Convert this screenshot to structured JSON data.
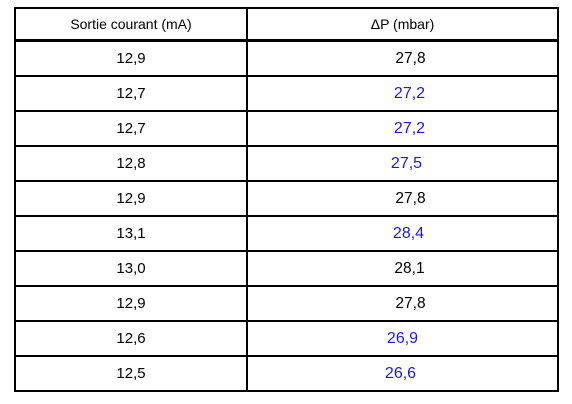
{
  "table": {
    "headers": [
      "Sortie courant (mA)",
      "ΔP (mbar)"
    ],
    "blue_color": "#1a1adf",
    "rows": [
      {
        "current": "12,9",
        "dp": "27,8",
        "blue": false
      },
      {
        "current": "12,7",
        "dp": "27,2",
        "blue": true
      },
      {
        "current": "12,7",
        "dp": "27,2",
        "blue": true
      },
      {
        "current": "12,8",
        "dp": "27,5",
        "blue": true
      },
      {
        "current": "12,9",
        "dp": "27,8",
        "blue": false
      },
      {
        "current": "13,1",
        "dp": "28,4",
        "blue": true
      },
      {
        "current": "13,0",
        "dp": "28,1",
        "blue": false
      },
      {
        "current": "12,9",
        "dp": "27,8",
        "blue": false
      },
      {
        "current": "12,6",
        "dp": "26,9",
        "blue": true
      },
      {
        "current": "12,5",
        "dp": "26,6",
        "blue": true
      }
    ]
  }
}
